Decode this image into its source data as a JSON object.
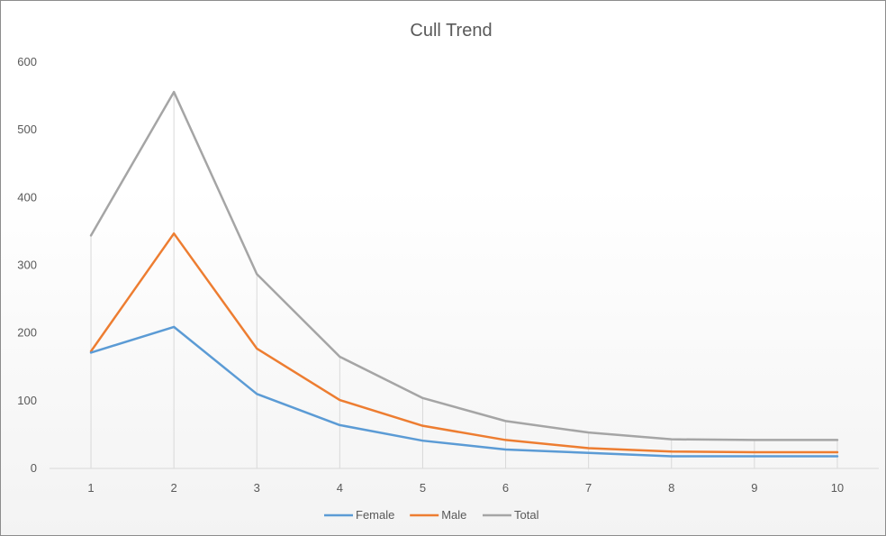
{
  "chart_data": {
    "type": "line",
    "title": "Cull Trend",
    "xlabel": "",
    "ylabel": "",
    "x": [
      1,
      2,
      3,
      4,
      5,
      6,
      7,
      8,
      9,
      10
    ],
    "ylim": [
      0,
      600
    ],
    "yticks": [
      0,
      100,
      200,
      300,
      400,
      500,
      600
    ],
    "grid": "vertical",
    "legend_position": "bottom",
    "series": [
      {
        "name": "Female",
        "color": "#5b9bd5",
        "values": [
          171,
          209,
          110,
          64,
          41,
          28,
          23,
          18,
          18,
          18
        ]
      },
      {
        "name": "Male",
        "color": "#ed7d31",
        "values": [
          173,
          347,
          177,
          101,
          63,
          42,
          30,
          25,
          24,
          24
        ]
      },
      {
        "name": "Total",
        "color": "#a5a5a5",
        "values": [
          344,
          556,
          287,
          165,
          104,
          70,
          53,
          43,
          42,
          42
        ]
      }
    ]
  }
}
